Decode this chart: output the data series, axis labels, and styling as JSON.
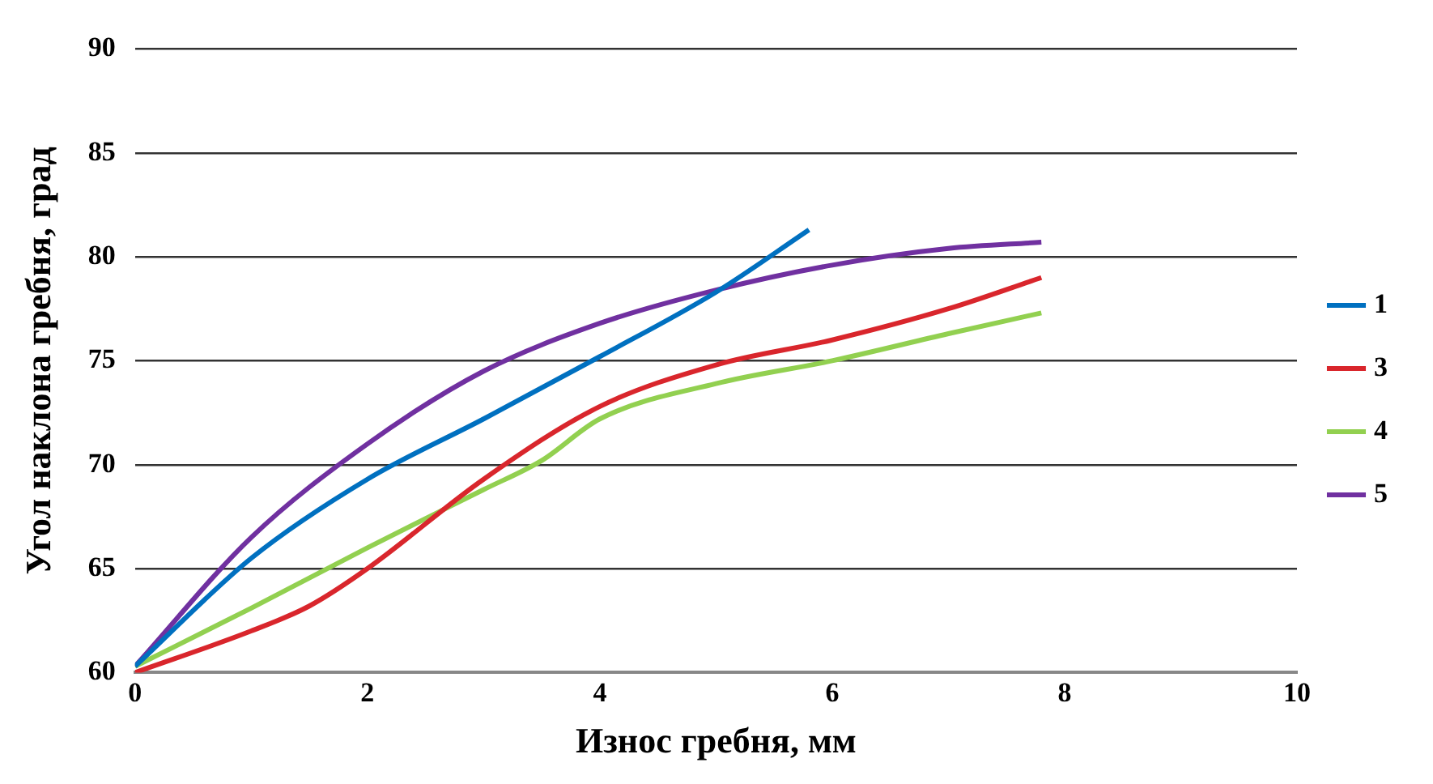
{
  "chart_data": {
    "type": "line",
    "xlabel": "Износ гребня, мм",
    "ylabel": "Угол наклона гребня, град",
    "xlim": [
      0,
      10
    ],
    "xticks": [
      0,
      2,
      4,
      6,
      8,
      10
    ],
    "ylim": [
      60,
      90
    ],
    "yticks": [
      60,
      65,
      70,
      75,
      80,
      85,
      90
    ],
    "grid": "y",
    "legend": "right",
    "marker": "none",
    "line_style": "solid",
    "series": [
      {
        "name": "1",
        "color": "#0070c0",
        "x": [
          0,
          1,
          2,
          3,
          4,
          5,
          5.8
        ],
        "values": [
          60.3,
          65.5,
          69.3,
          72.2,
          75.2,
          78.3,
          81.3
        ]
      },
      {
        "name": "3",
        "color": "#d9262c",
        "x": [
          0,
          1,
          1.5,
          2,
          3,
          4,
          5,
          6,
          7,
          7.8
        ],
        "values": [
          60,
          62,
          63.2,
          65,
          69.3,
          72.8,
          74.8,
          76,
          77.5,
          79
        ]
      },
      {
        "name": "4",
        "color": "#92d050",
        "x": [
          0,
          1,
          2,
          3,
          3.5,
          4,
          5,
          6,
          7,
          7.8
        ],
        "values": [
          60.3,
          63.1,
          66,
          68.8,
          70.2,
          72.2,
          73.9,
          75,
          76.3,
          77.3
        ]
      },
      {
        "name": "5",
        "color": "#7030a0",
        "x": [
          0,
          1,
          2,
          3,
          4,
          5,
          6,
          7,
          7.8
        ],
        "values": [
          60.3,
          66.5,
          71,
          74.5,
          76.8,
          78.4,
          79.6,
          80.4,
          80.7
        ]
      }
    ]
  }
}
